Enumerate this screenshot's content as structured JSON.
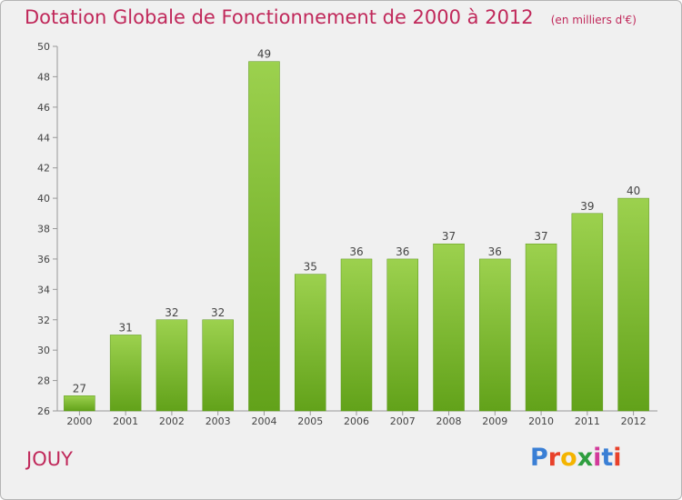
{
  "chart_data": {
    "type": "bar",
    "title": "Dotation Globale de Fonctionnement de 2000 à 2012",
    "subtitle": "(en milliers d'€)",
    "categories": [
      "2000",
      "2001",
      "2002",
      "2003",
      "2004",
      "2005",
      "2006",
      "2007",
      "2008",
      "2009",
      "2010",
      "2011",
      "2012"
    ],
    "values": [
      27,
      31,
      32,
      32,
      49,
      35,
      36,
      36,
      37,
      36,
      37,
      39,
      40
    ],
    "ylim": [
      26,
      50
    ],
    "yticks": [
      26,
      28,
      30,
      32,
      34,
      36,
      38,
      40,
      42,
      44,
      46,
      48,
      50
    ],
    "grid": false,
    "bar_color": "#7ab832",
    "title_color": "#c0285a"
  },
  "footer": {
    "town": "JOUY",
    "logo": "Proxiti"
  },
  "logo_colors": [
    "#3a7fd5",
    "#e8412a",
    "#f4b400",
    "#2e9e3f",
    "#d23a9a",
    "#3a7fd5",
    "#e8412a"
  ]
}
